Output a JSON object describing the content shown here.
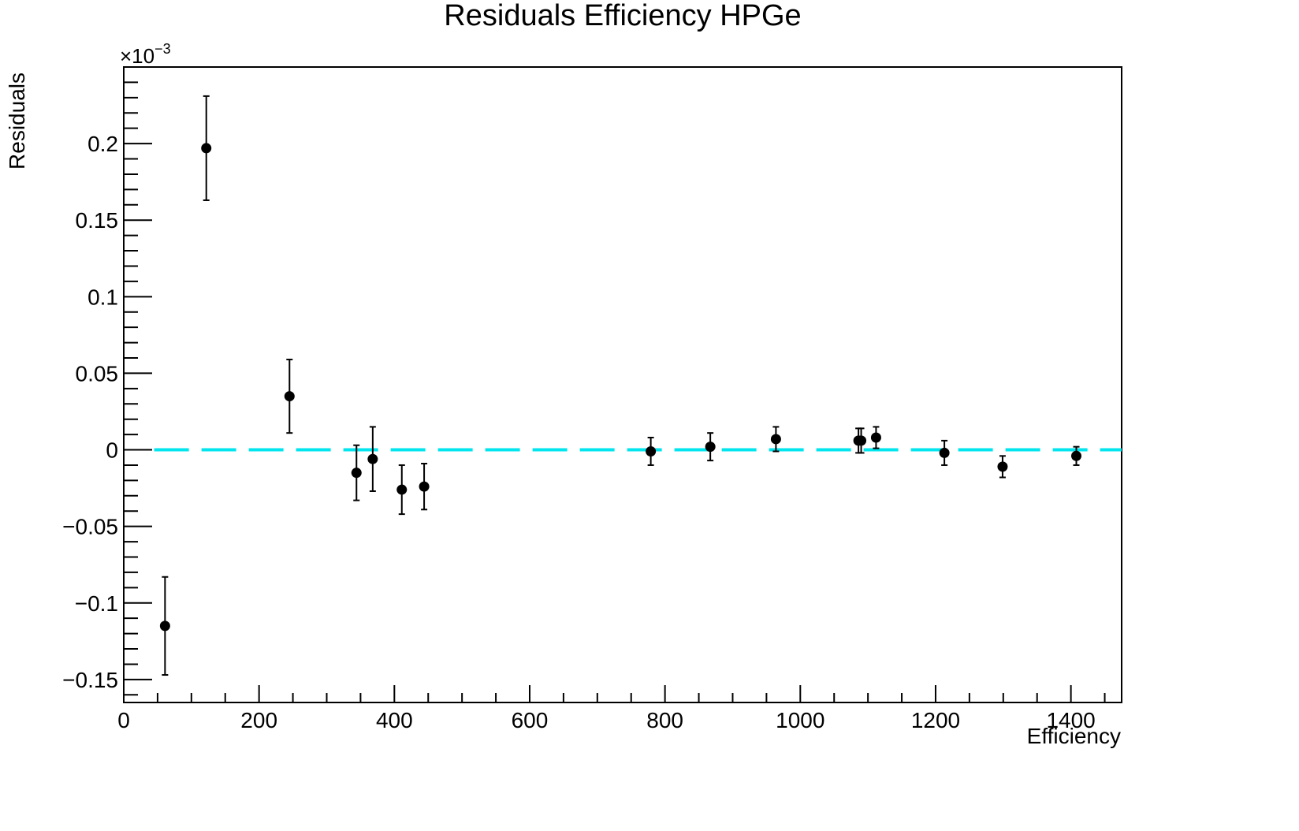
{
  "chart_data": {
    "type": "scatter",
    "title": "Residuals Efficiency HPGe",
    "xlabel": "Efficiency",
    "ylabel": "Residuals",
    "y_exponent_label": "×10",
    "y_exponent_power": "−3",
    "y_scale_factor": 0.001,
    "xlim": [
      0,
      1475
    ],
    "ylim": [
      -0.165,
      0.25
    ],
    "x_ticks": [
      0,
      200,
      400,
      600,
      800,
      1000,
      1200,
      1400
    ],
    "x_tick_labels": [
      "0",
      "200",
      "400",
      "600",
      "800",
      "1000",
      "1200",
      "1400"
    ],
    "y_ticks": [
      -0.15,
      -0.1,
      -0.05,
      0,
      0.05,
      0.1,
      0.15,
      0.2
    ],
    "y_tick_labels": [
      "−0.15",
      "−0.1",
      "−0.05",
      "0",
      "0.05",
      "0.1",
      "0.15",
      "0.2"
    ],
    "grid": false,
    "series": [
      {
        "marker_color": "#000000",
        "points": [
          {
            "x": 61,
            "y": -0.115,
            "err": 0.032
          },
          {
            "x": 122,
            "y": 0.197,
            "err": 0.034
          },
          {
            "x": 245,
            "y": 0.035,
            "err": 0.024
          },
          {
            "x": 344,
            "y": -0.015,
            "err": 0.018
          },
          {
            "x": 368,
            "y": -0.006,
            "err": 0.021
          },
          {
            "x": 411,
            "y": -0.026,
            "err": 0.016
          },
          {
            "x": 444,
            "y": -0.024,
            "err": 0.015
          },
          {
            "x": 779,
            "y": -0.001,
            "err": 0.009
          },
          {
            "x": 867,
            "y": 0.002,
            "err": 0.009
          },
          {
            "x": 964,
            "y": 0.007,
            "err": 0.008
          },
          {
            "x": 1086,
            "y": 0.006,
            "err": 0.008
          },
          {
            "x": 1090,
            "y": 0.006,
            "err": 0.008
          },
          {
            "x": 1112,
            "y": 0.008,
            "err": 0.007
          },
          {
            "x": 1213,
            "y": -0.002,
            "err": 0.008
          },
          {
            "x": 1299,
            "y": -0.011,
            "err": 0.007
          },
          {
            "x": 1408,
            "y": -0.004,
            "err": 0.006
          }
        ]
      }
    ],
    "reference_line": {
      "y": 0,
      "x_range": [
        45,
        1475
      ],
      "color": "#00e5ee",
      "style": "dashed"
    }
  }
}
